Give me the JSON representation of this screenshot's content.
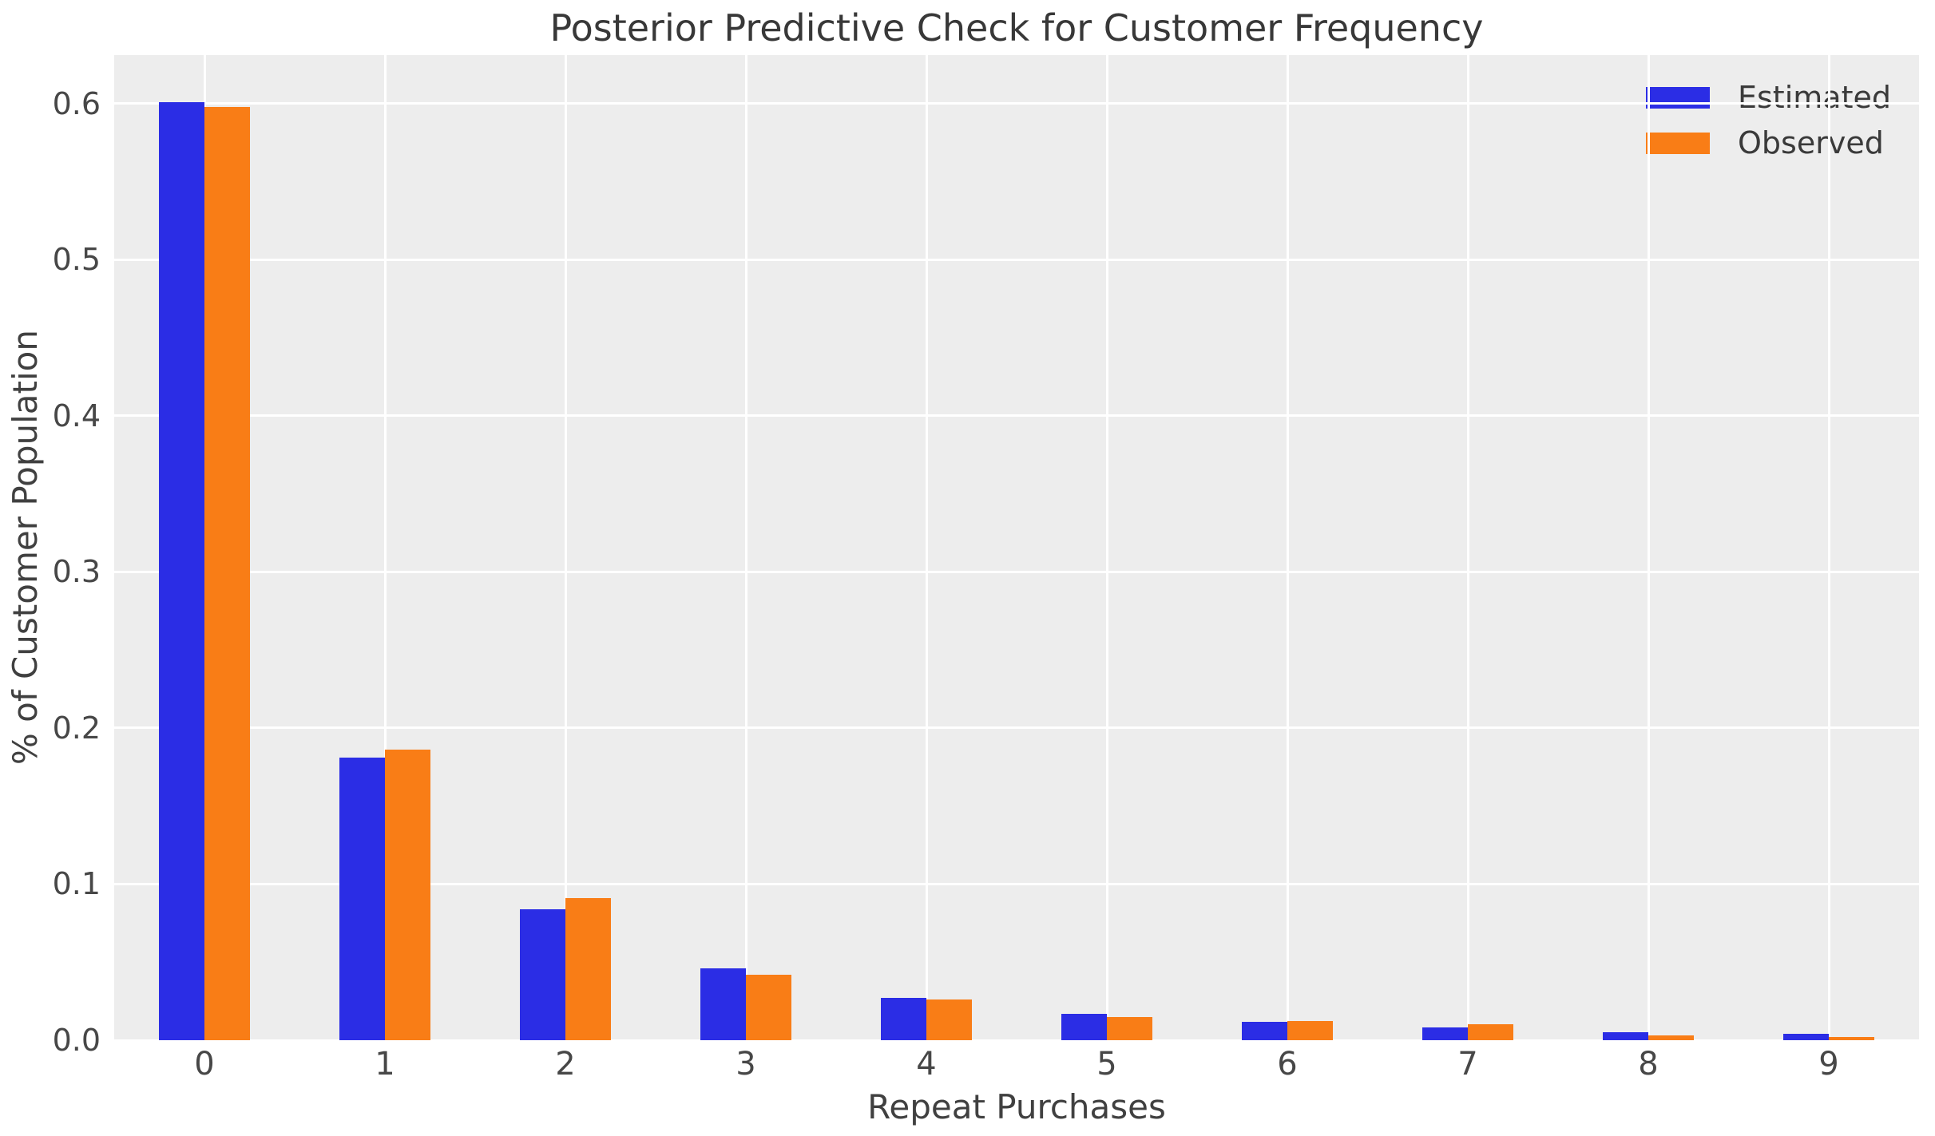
{
  "chart_data": {
    "type": "bar",
    "title": "Posterior Predictive Check for Customer Frequency",
    "xlabel": "Repeat Purchases",
    "ylabel": "% of Customer Population",
    "categories": [
      "0",
      "1",
      "2",
      "3",
      "4",
      "5",
      "6",
      "7",
      "8",
      "9"
    ],
    "series": [
      {
        "name": "Estimated",
        "color": "#2b2de5",
        "values": [
          0.601,
          0.181,
          0.084,
          0.046,
          0.027,
          0.017,
          0.012,
          0.008,
          0.005,
          0.004
        ]
      },
      {
        "name": "Observed",
        "color": "#f97d16",
        "values": [
          0.598,
          0.186,
          0.091,
          0.042,
          0.026,
          0.015,
          0.0125,
          0.01,
          0.003,
          0.002
        ]
      }
    ],
    "ylim": [
      0,
      0.631
    ],
    "yticks": [
      0.0,
      0.1,
      0.2,
      0.3,
      0.4,
      0.5,
      0.6
    ],
    "ytick_labels": [
      "0.0",
      "0.1",
      "0.2",
      "0.3",
      "0.4",
      "0.5",
      "0.6"
    ],
    "grid": true,
    "legend_position": "upper right",
    "plot_bg_color": "#ededed",
    "grid_color": "#ffffff"
  }
}
